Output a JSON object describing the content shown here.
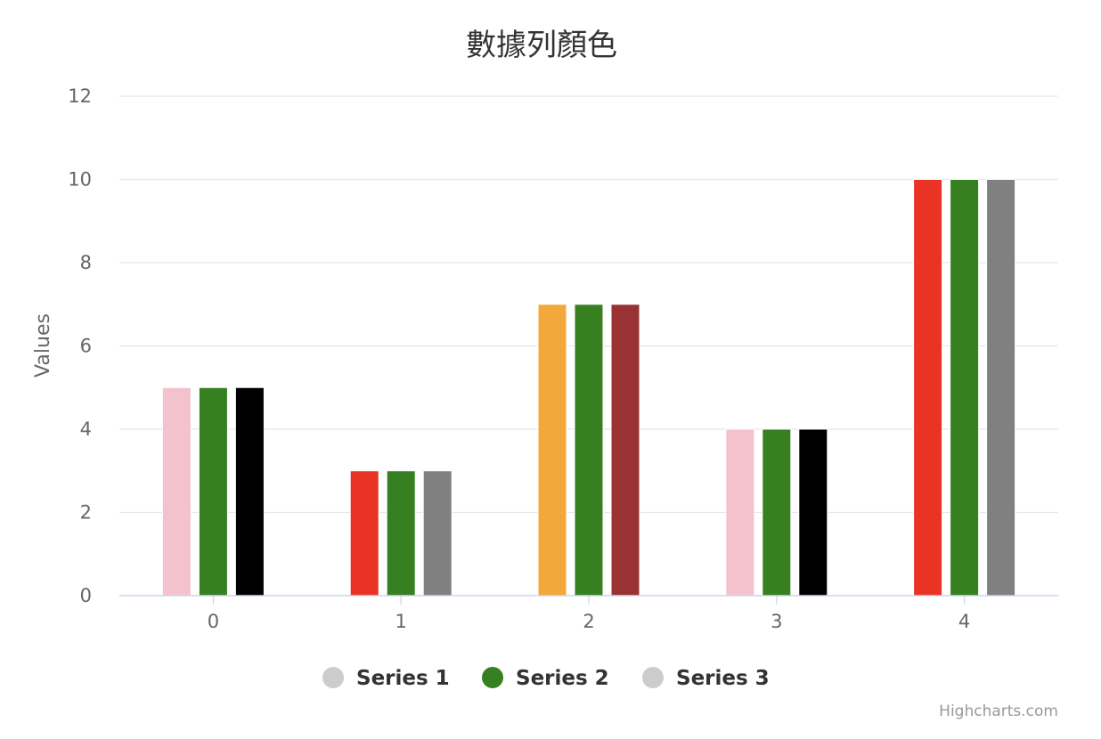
{
  "chart_data": {
    "type": "bar",
    "title": "數據列顏色",
    "ylabel": "Values",
    "xlabel": "",
    "categories": [
      "0",
      "1",
      "2",
      "3",
      "4"
    ],
    "ylim": [
      0,
      12
    ],
    "yticks": [
      0,
      2,
      4,
      6,
      8,
      10,
      12
    ],
    "grid": true,
    "legend_placement": "bottom-center",
    "series": [
      {
        "name": "Series 1",
        "legend_color": "#cccccc",
        "values": [
          5,
          3,
          7,
          4,
          10
        ],
        "colors": [
          "#f4c2cc",
          "#e83325",
          "#f2a83b",
          "#f4c2cc",
          "#e83325"
        ]
      },
      {
        "name": "Series 2",
        "legend_color": "#378022",
        "values": [
          5,
          3,
          7,
          4,
          10
        ],
        "colors": [
          "#378022",
          "#378022",
          "#378022",
          "#378022",
          "#378022"
        ]
      },
      {
        "name": "Series 3",
        "legend_color": "#cccccc",
        "values": [
          5,
          3,
          7,
          4,
          10
        ],
        "colors": [
          "#000000",
          "#808080",
          "#993333",
          "#000000",
          "#808080"
        ]
      }
    ],
    "credits": "Highcharts.com"
  }
}
